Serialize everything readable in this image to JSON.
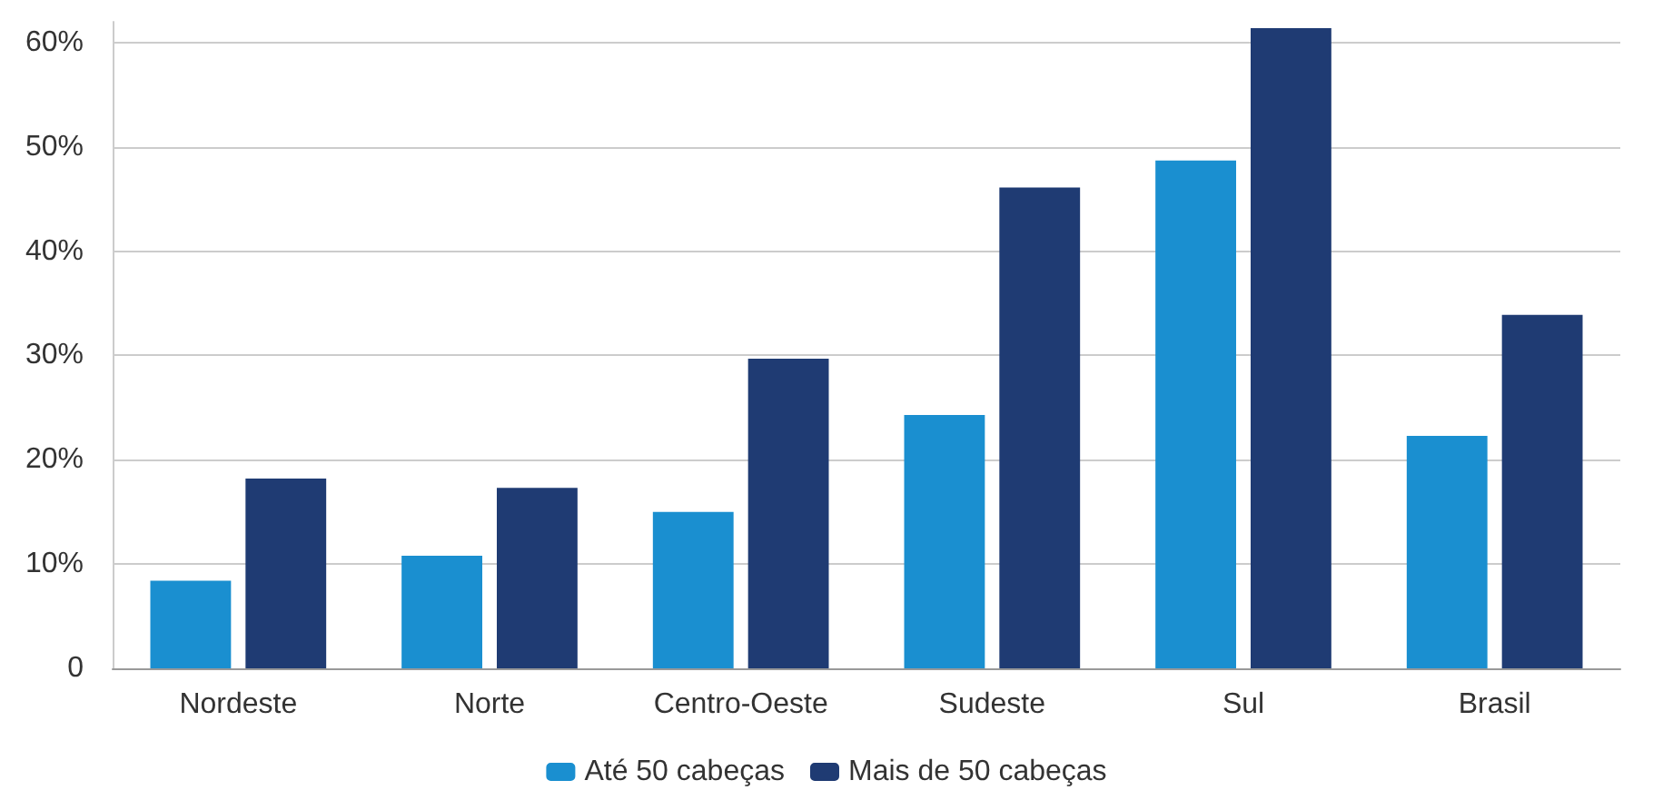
{
  "chart_data": {
    "type": "bar",
    "categories": [
      "Nordeste",
      "Norte",
      "Centro-Oeste",
      "Sudeste",
      "Sul",
      "Brasil"
    ],
    "series": [
      {
        "name": "Até 50 cabeças",
        "color": "#1a8fd0",
        "values": [
          8.4,
          10.8,
          15.0,
          24.3,
          48.7,
          22.3
        ]
      },
      {
        "name": "Mais de 50 cabeças",
        "color": "#1f3b73",
        "values": [
          18.2,
          17.3,
          29.7,
          46.1,
          61.4,
          33.9
        ]
      }
    ],
    "ylim": [
      0,
      62
    ],
    "yticks": [
      0,
      {
        "value": 10,
        "label": "10%"
      },
      {
        "value": 20,
        "label": "20%"
      },
      {
        "value": 30,
        "label": "30%"
      },
      {
        "value": 40,
        "label": "40%"
      },
      {
        "value": 50,
        "label": "50%"
      },
      {
        "value": 60,
        "label": "60%"
      }
    ],
    "grid": "y",
    "legend": "bottom"
  }
}
